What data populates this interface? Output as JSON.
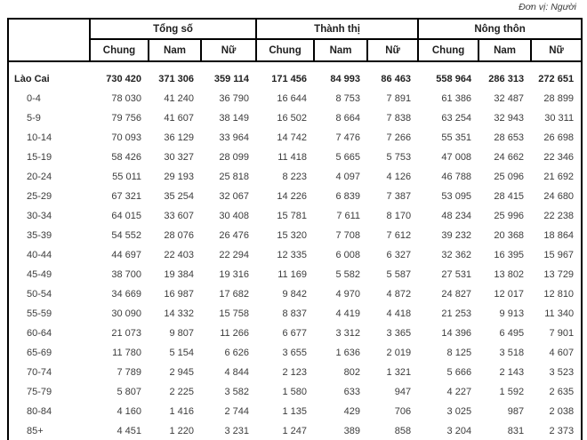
{
  "page": {
    "unit_label": "Đơn vị: Người"
  },
  "table": {
    "col_groups": [
      {
        "label": "Tổng số"
      },
      {
        "label": "Thành thị"
      },
      {
        "label": "Nông thôn"
      }
    ],
    "sub_headers": [
      "Chung",
      "Nam",
      "Nữ"
    ],
    "rows": [
      {
        "label": "Lào Cai",
        "bold": true,
        "values": [
          "730 420",
          "371 306",
          "359 114",
          "171 456",
          "84 993",
          "86 463",
          "558 964",
          "286 313",
          "272 651"
        ]
      },
      {
        "label": "0-4",
        "bold": false,
        "values": [
          "78 030",
          "41 240",
          "36 790",
          "16 644",
          "8 753",
          "7 891",
          "61 386",
          "32 487",
          "28 899"
        ]
      },
      {
        "label": "5-9",
        "bold": false,
        "values": [
          "79 756",
          "41 607",
          "38 149",
          "16 502",
          "8 664",
          "7 838",
          "63 254",
          "32 943",
          "30 311"
        ]
      },
      {
        "label": "10-14",
        "bold": false,
        "values": [
          "70 093",
          "36 129",
          "33 964",
          "14 742",
          "7 476",
          "7 266",
          "55 351",
          "28 653",
          "26 698"
        ]
      },
      {
        "label": "15-19",
        "bold": false,
        "values": [
          "58 426",
          "30 327",
          "28 099",
          "11 418",
          "5 665",
          "5 753",
          "47 008",
          "24 662",
          "22 346"
        ]
      },
      {
        "label": "20-24",
        "bold": false,
        "values": [
          "55 011",
          "29 193",
          "25 818",
          "8 223",
          "4 097",
          "4 126",
          "46 788",
          "25 096",
          "21 692"
        ]
      },
      {
        "label": "25-29",
        "bold": false,
        "values": [
          "67 321",
          "35 254",
          "32 067",
          "14 226",
          "6 839",
          "7 387",
          "53 095",
          "28 415",
          "24 680"
        ]
      },
      {
        "label": "30-34",
        "bold": false,
        "values": [
          "64 015",
          "33 607",
          "30 408",
          "15 781",
          "7 611",
          "8 170",
          "48 234",
          "25 996",
          "22 238"
        ]
      },
      {
        "label": "35-39",
        "bold": false,
        "values": [
          "54 552",
          "28 076",
          "26 476",
          "15 320",
          "7 708",
          "7 612",
          "39 232",
          "20 368",
          "18 864"
        ]
      },
      {
        "label": "40-44",
        "bold": false,
        "values": [
          "44 697",
          "22 403",
          "22 294",
          "12 335",
          "6 008",
          "6 327",
          "32 362",
          "16 395",
          "15 967"
        ]
      },
      {
        "label": "45-49",
        "bold": false,
        "values": [
          "38 700",
          "19 384",
          "19 316",
          "11 169",
          "5 582",
          "5 587",
          "27 531",
          "13 802",
          "13 729"
        ]
      },
      {
        "label": "50-54",
        "bold": false,
        "values": [
          "34 669",
          "16 987",
          "17 682",
          "9 842",
          "4 970",
          "4 872",
          "24 827",
          "12 017",
          "12 810"
        ]
      },
      {
        "label": "55-59",
        "bold": false,
        "values": [
          "30 090",
          "14 332",
          "15 758",
          "8 837",
          "4 419",
          "4 418",
          "21 253",
          "9 913",
          "11 340"
        ]
      },
      {
        "label": "60-64",
        "bold": false,
        "values": [
          "21 073",
          "9 807",
          "11 266",
          "6 677",
          "3 312",
          "3 365",
          "14 396",
          "6 495",
          "7 901"
        ]
      },
      {
        "label": "65-69",
        "bold": false,
        "values": [
          "11 780",
          "5 154",
          "6 626",
          "3 655",
          "1 636",
          "2 019",
          "8 125",
          "3 518",
          "4 607"
        ]
      },
      {
        "label": "70-74",
        "bold": false,
        "values": [
          "7 789",
          "2 945",
          "4 844",
          "2 123",
          "802",
          "1 321",
          "5 666",
          "2 143",
          "3 523"
        ]
      },
      {
        "label": "75-79",
        "bold": false,
        "values": [
          "5 807",
          "2 225",
          "3 582",
          "1 580",
          "633",
          "947",
          "4 227",
          "1 592",
          "2 635"
        ]
      },
      {
        "label": "80-84",
        "bold": false,
        "values": [
          "4 160",
          "1 416",
          "2 744",
          "1 135",
          "429",
          "706",
          "3 025",
          "987",
          "2 038"
        ]
      },
      {
        "label": "85+",
        "bold": false,
        "values": [
          "4 451",
          "1 220",
          "3 231",
          "1 247",
          "389",
          "858",
          "3 204",
          "831",
          "2 373"
        ]
      }
    ]
  }
}
